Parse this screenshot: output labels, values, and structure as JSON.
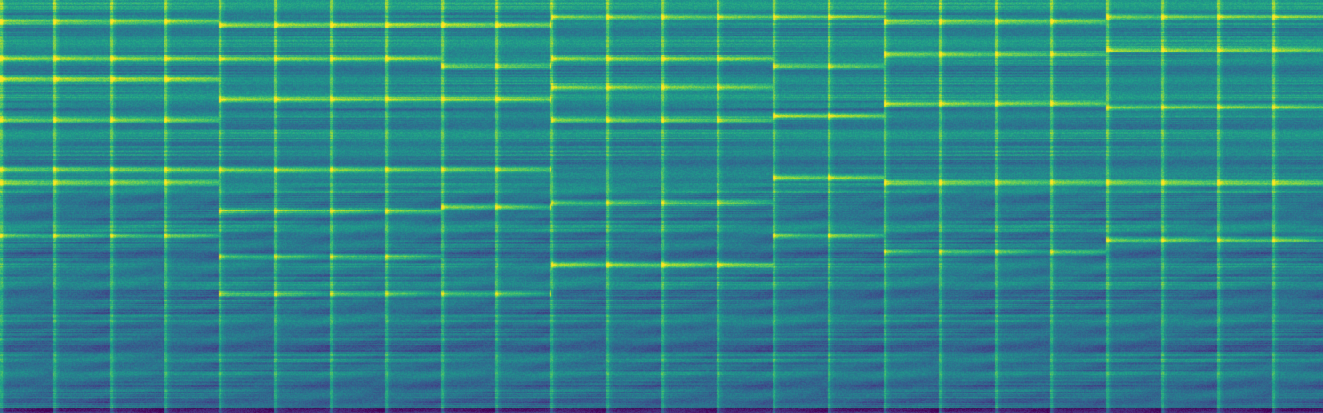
{
  "colormap": {
    "name": "viridis",
    "stops": [
      "#440154",
      "#482878",
      "#3e4989",
      "#31688e",
      "#26828e",
      "#1f9e89",
      "#35b779",
      "#6ece58",
      "#b5de2b",
      "#fde725"
    ]
  },
  "chart_data": {
    "type": "heatmap",
    "kind": "spectrogram",
    "axes_visible": false,
    "title": "",
    "xlabel": "",
    "ylabel": "",
    "onsets_fraction": [
      0.0,
      0.04,
      0.083,
      0.124,
      0.165,
      0.207,
      0.249,
      0.291,
      0.333,
      0.374,
      0.416,
      0.458,
      0.5,
      0.542,
      0.584,
      0.626,
      0.668,
      0.71,
      0.752,
      0.794,
      0.836,
      0.878,
      0.92,
      0.962
    ],
    "note_groups": [
      {
        "start_fraction": 0.0,
        "end_fraction": 0.165,
        "harmonic_rows_fraction": [
          0.05,
          0.14,
          0.19,
          0.29,
          0.41,
          0.44,
          0.57
        ]
      },
      {
        "start_fraction": 0.165,
        "end_fraction": 0.333,
        "harmonic_rows_fraction": [
          0.06,
          0.14,
          0.24,
          0.41,
          0.51,
          0.62,
          0.71
        ]
      },
      {
        "start_fraction": 0.333,
        "end_fraction": 0.416,
        "harmonic_rows_fraction": [
          0.06,
          0.16,
          0.24,
          0.41,
          0.5,
          0.71
        ]
      },
      {
        "start_fraction": 0.416,
        "end_fraction": 0.584,
        "harmonic_rows_fraction": [
          0.04,
          0.14,
          0.21,
          0.29,
          0.49,
          0.64
        ]
      },
      {
        "start_fraction": 0.584,
        "end_fraction": 0.668,
        "harmonic_rows_fraction": [
          0.04,
          0.16,
          0.28,
          0.43,
          0.57
        ]
      },
      {
        "start_fraction": 0.668,
        "end_fraction": 0.836,
        "harmonic_rows_fraction": [
          0.05,
          0.13,
          0.25,
          0.44,
          0.61
        ]
      },
      {
        "start_fraction": 0.836,
        "end_fraction": 1.0,
        "harmonic_rows_fraction": [
          0.04,
          0.12,
          0.26,
          0.44,
          0.58
        ]
      }
    ]
  }
}
